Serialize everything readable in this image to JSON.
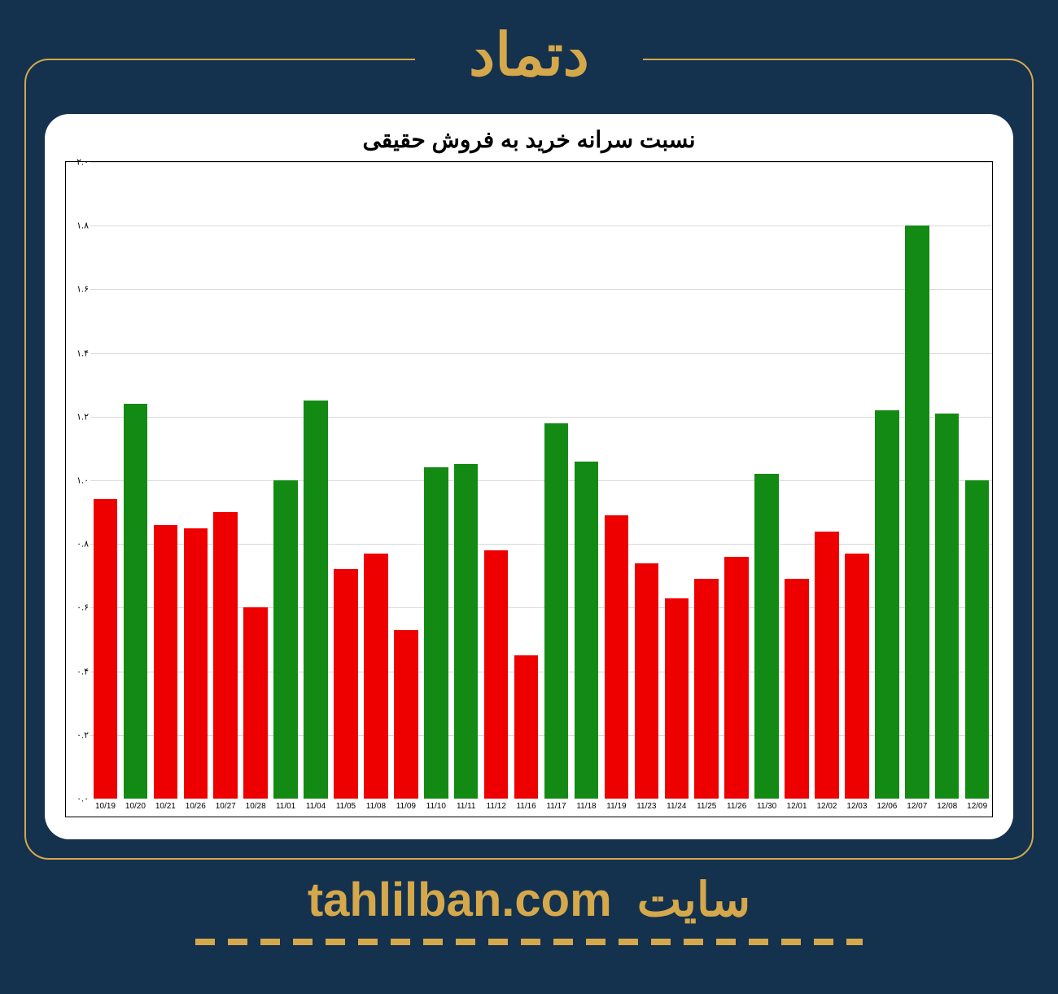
{
  "page": {
    "background_color": "#14314e",
    "accent_color": "#d4a84b",
    "header_title": "دتماد",
    "footer_word": "سایت",
    "footer_domain": "tahlilban.com"
  },
  "chart": {
    "type": "bar",
    "title": "نسبت سرانه خرید به فروش حقیقی",
    "title_fontsize": 28,
    "background_color": "#ffffff",
    "grid_color": "#000000",
    "grid_opacity": 0.15,
    "ylim": [
      0.0,
      2.0
    ],
    "ytick_step": 0.2,
    "ytick_labels": [
      "۰.۰",
      "۰.۲",
      "۰.۴",
      "۰.۶",
      "۰.۸",
      "۱.۰",
      "۱.۲",
      "۱.۴",
      "۱.۶",
      "۱.۸",
      "۲.۰"
    ],
    "bar_width": 0.8,
    "color_up": "#138a13",
    "color_down": "#ef0000",
    "categories": [
      "10/19",
      "10/20",
      "10/21",
      "10/26",
      "10/27",
      "10/28",
      "11/01",
      "11/04",
      "11/05",
      "11/08",
      "11/09",
      "11/10",
      "11/11",
      "11/12",
      "11/16",
      "11/17",
      "11/18",
      "11/19",
      "11/23",
      "11/24",
      "11/25",
      "11/26",
      "11/30",
      "12/01",
      "12/02",
      "12/03",
      "12/06",
      "12/07",
      "12/08",
      "12/09"
    ],
    "values": [
      0.94,
      1.24,
      0.86,
      0.85,
      0.9,
      0.6,
      1.0,
      1.25,
      0.72,
      0.77,
      0.53,
      1.04,
      1.05,
      0.78,
      0.45,
      1.18,
      1.06,
      0.89,
      0.74,
      0.63,
      0.69,
      0.76,
      1.02,
      0.69,
      0.84,
      0.77,
      1.22,
      1.8,
      1.21,
      1.0
    ],
    "colors": [
      "down",
      "up",
      "down",
      "down",
      "down",
      "down",
      "up",
      "up",
      "down",
      "down",
      "down",
      "up",
      "up",
      "down",
      "down",
      "up",
      "up",
      "down",
      "down",
      "down",
      "down",
      "down",
      "up",
      "down",
      "down",
      "down",
      "up",
      "up",
      "up",
      "up"
    ]
  }
}
